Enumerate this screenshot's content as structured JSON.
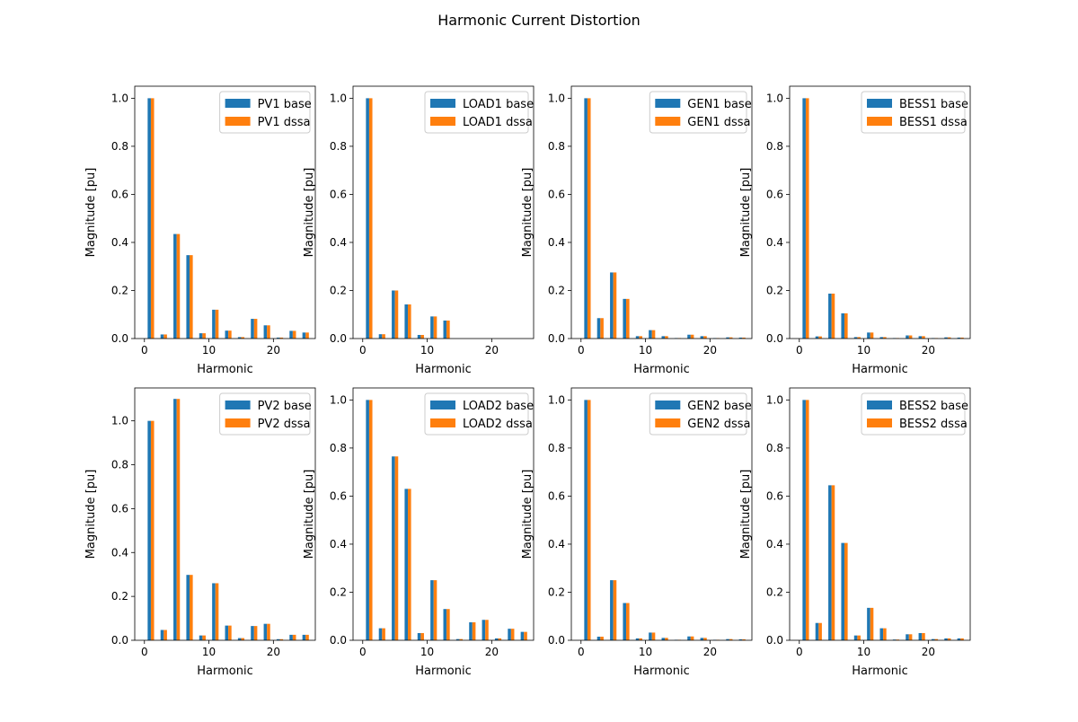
{
  "figure": {
    "title": "Harmonic Current Distortion",
    "colors": {
      "base": "#1f77b4",
      "dssa": "#ff7f0e"
    }
  },
  "chart_data": [
    {
      "type": "bar",
      "xlabel": "Harmonic",
      "ylabel": "Magnitude [pu]",
      "xlim": [
        -1.5,
        26.5
      ],
      "ylim": [
        0,
        1.05
      ],
      "xticks": [
        0,
        10,
        20
      ],
      "yticks": [
        0.0,
        0.2,
        0.4,
        0.6,
        0.8,
        1.0
      ],
      "legend": "top-right",
      "x": [
        1,
        3,
        5,
        7,
        9,
        11,
        13,
        15,
        17,
        19,
        21,
        23,
        25
      ],
      "series": [
        {
          "name": "PV1 base",
          "values": [
            1.0,
            0.017,
            0.435,
            0.347,
            0.022,
            0.12,
            0.033,
            0.006,
            0.082,
            0.055,
            0.004,
            0.032,
            0.025
          ]
        },
        {
          "name": "PV1 dssa",
          "values": [
            1.0,
            0.017,
            0.435,
            0.347,
            0.022,
            0.12,
            0.033,
            0.006,
            0.082,
            0.055,
            0.004,
            0.032,
            0.025
          ]
        }
      ]
    },
    {
      "type": "bar",
      "xlabel": "Harmonic",
      "ylabel": "Magnitude [pu]",
      "xlim": [
        -1.5,
        26.5
      ],
      "ylim": [
        0,
        1.05
      ],
      "xticks": [
        0,
        10,
        20
      ],
      "yticks": [
        0.0,
        0.2,
        0.4,
        0.6,
        0.8,
        1.0
      ],
      "legend": "top-right",
      "x": [
        1,
        3,
        5,
        7,
        9,
        11,
        13,
        15,
        17,
        19,
        21,
        23,
        25
      ],
      "series": [
        {
          "name": "LOAD1 base",
          "values": [
            1.0,
            0.018,
            0.2,
            0.142,
            0.015,
            0.092,
            0.075,
            0,
            0,
            0,
            0,
            0,
            0
          ]
        },
        {
          "name": "LOAD1 dssa",
          "values": [
            1.0,
            0.018,
            0.2,
            0.142,
            0.015,
            0.092,
            0.075,
            0,
            0,
            0,
            0,
            0,
            0
          ]
        }
      ]
    },
    {
      "type": "bar",
      "xlabel": "Harmonic",
      "ylabel": "Magnitude [pu]",
      "xlim": [
        -1.5,
        26.5
      ],
      "ylim": [
        0,
        1.05
      ],
      "xticks": [
        0,
        10,
        20
      ],
      "yticks": [
        0.0,
        0.2,
        0.4,
        0.6,
        0.8,
        1.0
      ],
      "legend": "top-right",
      "x": [
        1,
        3,
        5,
        7,
        9,
        11,
        13,
        15,
        17,
        19,
        21,
        23,
        25
      ],
      "series": [
        {
          "name": "GEN1 base",
          "values": [
            1.0,
            0.085,
            0.275,
            0.165,
            0.01,
            0.035,
            0.01,
            0.002,
            0.016,
            0.01,
            0.002,
            0.005,
            0.004
          ]
        },
        {
          "name": "GEN1 dssa",
          "values": [
            1.0,
            0.085,
            0.275,
            0.165,
            0.01,
            0.035,
            0.01,
            0.002,
            0.016,
            0.01,
            0.002,
            0.005,
            0.004
          ]
        }
      ]
    },
    {
      "type": "bar",
      "xlabel": "Harmonic",
      "ylabel": "Magnitude [pu]",
      "xlim": [
        -1.5,
        26.5
      ],
      "ylim": [
        0,
        1.05
      ],
      "xticks": [
        0,
        10,
        20
      ],
      "yticks": [
        0.0,
        0.2,
        0.4,
        0.6,
        0.8,
        1.0
      ],
      "legend": "top-right",
      "x": [
        1,
        3,
        5,
        7,
        9,
        11,
        13,
        15,
        17,
        19,
        21,
        23,
        25
      ],
      "series": [
        {
          "name": "BESS1 base",
          "values": [
            1.0,
            0.009,
            0.187,
            0.105,
            0.006,
            0.025,
            0.006,
            0.002,
            0.013,
            0.01,
            0.002,
            0.005,
            0.004
          ]
        },
        {
          "name": "BESS1 dssa",
          "values": [
            1.0,
            0.009,
            0.187,
            0.105,
            0.006,
            0.025,
            0.006,
            0.002,
            0.013,
            0.01,
            0.002,
            0.005,
            0.004
          ]
        }
      ]
    },
    {
      "type": "bar",
      "xlabel": "Harmonic",
      "ylabel": "Magnitude [pu]",
      "xlim": [
        -1.5,
        26.5
      ],
      "ylim": [
        0,
        1.15
      ],
      "xticks": [
        0,
        10,
        20
      ],
      "yticks": [
        0.0,
        0.2,
        0.4,
        0.6,
        0.8,
        1.0
      ],
      "legend": "top-right",
      "x": [
        1,
        3,
        5,
        7,
        9,
        11,
        13,
        15,
        17,
        19,
        21,
        23,
        25
      ],
      "series": [
        {
          "name": "PV2 base",
          "values": [
            1.0,
            0.047,
            1.1,
            0.298,
            0.022,
            0.26,
            0.067,
            0.01,
            0.065,
            0.075,
            0.005,
            0.025,
            0.025
          ]
        },
        {
          "name": "PV2 dssa",
          "values": [
            1.0,
            0.047,
            1.1,
            0.298,
            0.022,
            0.26,
            0.067,
            0.01,
            0.065,
            0.075,
            0.005,
            0.025,
            0.025
          ]
        }
      ]
    },
    {
      "type": "bar",
      "xlabel": "Harmonic",
      "ylabel": "Magnitude [pu]",
      "xlim": [
        -1.5,
        26.5
      ],
      "ylim": [
        0,
        1.05
      ],
      "xticks": [
        0,
        10,
        20
      ],
      "yticks": [
        0.0,
        0.2,
        0.4,
        0.6,
        0.8,
        1.0
      ],
      "legend": "top-right",
      "x": [
        1,
        3,
        5,
        7,
        9,
        11,
        13,
        15,
        17,
        19,
        21,
        23,
        25
      ],
      "series": [
        {
          "name": "LOAD2 base",
          "values": [
            1.0,
            0.05,
            0.765,
            0.63,
            0.03,
            0.25,
            0.13,
            0.005,
            0.075,
            0.085,
            0.008,
            0.048,
            0.035
          ]
        },
        {
          "name": "LOAD2 dssa",
          "values": [
            1.0,
            0.05,
            0.765,
            0.63,
            0.03,
            0.25,
            0.13,
            0.005,
            0.075,
            0.085,
            0.008,
            0.048,
            0.035
          ]
        }
      ]
    },
    {
      "type": "bar",
      "xlabel": "Harmonic",
      "ylabel": "Magnitude [pu]",
      "xlim": [
        -1.5,
        26.5
      ],
      "ylim": [
        0,
        1.05
      ],
      "xticks": [
        0,
        10,
        20
      ],
      "yticks": [
        0.0,
        0.2,
        0.4,
        0.6,
        0.8,
        1.0
      ],
      "legend": "top-right",
      "x": [
        1,
        3,
        5,
        7,
        9,
        11,
        13,
        15,
        17,
        19,
        21,
        23,
        25
      ],
      "series": [
        {
          "name": "GEN2 base",
          "values": [
            1.0,
            0.015,
            0.25,
            0.155,
            0.008,
            0.032,
            0.01,
            0.002,
            0.016,
            0.01,
            0.002,
            0.005,
            0.004
          ]
        },
        {
          "name": "GEN2 dssa",
          "values": [
            1.0,
            0.015,
            0.25,
            0.155,
            0.008,
            0.032,
            0.01,
            0.002,
            0.016,
            0.01,
            0.002,
            0.005,
            0.004
          ]
        }
      ]
    },
    {
      "type": "bar",
      "xlabel": "Harmonic",
      "ylabel": "Magnitude [pu]",
      "xlim": [
        -1.5,
        26.5
      ],
      "ylim": [
        0,
        1.05
      ],
      "xticks": [
        0,
        10,
        20
      ],
      "yticks": [
        0.0,
        0.2,
        0.4,
        0.6,
        0.8,
        1.0
      ],
      "legend": "top-right",
      "x": [
        1,
        3,
        5,
        7,
        9,
        11,
        13,
        15,
        17,
        19,
        21,
        23,
        25
      ],
      "series": [
        {
          "name": "BESS2 base",
          "values": [
            1.0,
            0.072,
            0.645,
            0.405,
            0.02,
            0.135,
            0.05,
            0.003,
            0.025,
            0.03,
            0.005,
            0.008,
            0.008
          ]
        },
        {
          "name": "BESS2 dssa",
          "values": [
            1.0,
            0.072,
            0.645,
            0.405,
            0.02,
            0.135,
            0.05,
            0.003,
            0.025,
            0.03,
            0.005,
            0.008,
            0.008
          ]
        }
      ]
    }
  ]
}
